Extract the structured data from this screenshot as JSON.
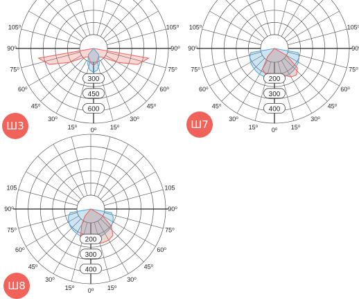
{
  "diagrams": [
    {
      "badge": "Ш3",
      "ring_labels": [
        {
          "r": 300,
          "label": "300"
        },
        {
          "r": 450,
          "label": "450"
        },
        {
          "r": 600,
          "label": "600"
        }
      ],
      "max_r": 750,
      "angle_labels": [
        "0⁰",
        "15⁰",
        "30⁰",
        "45⁰",
        "60⁰",
        "75⁰",
        "90⁰",
        "105⁰"
      ],
      "curves": [
        {
          "color": "#f1635a",
          "fill": "rgba(241,99,90,0.25)",
          "angles": [
            -90,
            -80,
            -70,
            -60,
            -50,
            -40,
            -30,
            -20,
            -10,
            0,
            10,
            20,
            30,
            40,
            50,
            60,
            70,
            80,
            90
          ],
          "values": [
            0,
            560,
            470,
            280,
            150,
            110,
            100,
            120,
            150,
            170,
            150,
            120,
            100,
            110,
            150,
            280,
            470,
            560,
            0
          ]
        },
        {
          "color": "#5ba6d6",
          "fill": "rgba(91,166,214,0.30)",
          "angles": [
            -90,
            -60,
            -40,
            -20,
            -10,
            0,
            10,
            20,
            40,
            60,
            90
          ],
          "values": [
            0,
            0,
            80,
            170,
            220,
            240,
            220,
            170,
            80,
            0,
            0
          ]
        }
      ]
    },
    {
      "badge": "Ш7",
      "ring_labels": [
        {
          "r": 200,
          "label": "200"
        },
        {
          "r": 300,
          "label": "300"
        },
        {
          "r": 400,
          "label": "400"
        }
      ],
      "max_r": 500,
      "angle_labels": [
        "0⁰",
        "15⁰",
        "30⁰",
        "45⁰",
        "60⁰",
        "75⁰",
        "90⁰",
        "105⁰"
      ],
      "curves": [
        {
          "color": "#5ba6d6",
          "fill": "rgba(91,166,214,0.30)",
          "angles": [
            -90,
            -80,
            -70,
            -60,
            -50,
            -40,
            -30,
            -20,
            -10,
            0,
            10,
            20,
            30,
            40,
            50,
            60,
            70,
            80,
            90
          ],
          "values": [
            0,
            160,
            175,
            185,
            190,
            195,
            200,
            200,
            205,
            210,
            205,
            200,
            200,
            195,
            190,
            185,
            175,
            160,
            0
          ]
        },
        {
          "color": "#f1635a",
          "fill": "rgba(200,120,110,0.30)",
          "angles": [
            -90,
            -60,
            -40,
            -30,
            -20,
            -10,
            0,
            10,
            20,
            30,
            40,
            50,
            60,
            90
          ],
          "values": [
            0,
            0,
            70,
            160,
            180,
            170,
            170,
            170,
            190,
            220,
            230,
            200,
            90,
            0
          ]
        }
      ]
    },
    {
      "badge": "Ш8",
      "ring_labels": [
        {
          "r": 200,
          "label": "200"
        },
        {
          "r": 300,
          "label": "300"
        },
        {
          "r": 400,
          "label": "400"
        }
      ],
      "max_r": 500,
      "angle_labels": [
        "0⁰",
        "15⁰",
        "30⁰",
        "45⁰",
        "60⁰",
        "75⁰",
        "90⁰",
        "105"
      ],
      "curves": [
        {
          "color": "#5ba6d6",
          "fill": "rgba(91,166,214,0.30)",
          "angles": [
            -90,
            -80,
            -70,
            -60,
            -50,
            -40,
            -30,
            -20,
            -10,
            0,
            10,
            20,
            30,
            40,
            50,
            60,
            70,
            80,
            90
          ],
          "values": [
            0,
            140,
            160,
            170,
            180,
            185,
            190,
            195,
            200,
            205,
            200,
            195,
            190,
            185,
            180,
            170,
            160,
            140,
            0
          ]
        },
        {
          "color": "#f1635a",
          "fill": "rgba(200,120,110,0.30)",
          "angles": [
            -90,
            -60,
            -40,
            -30,
            -20,
            -10,
            0,
            10,
            20,
            30,
            40,
            50,
            60,
            90
          ],
          "values": [
            0,
            0,
            60,
            120,
            200,
            230,
            230,
            235,
            240,
            240,
            230,
            180,
            90,
            0
          ]
        }
      ]
    }
  ]
}
